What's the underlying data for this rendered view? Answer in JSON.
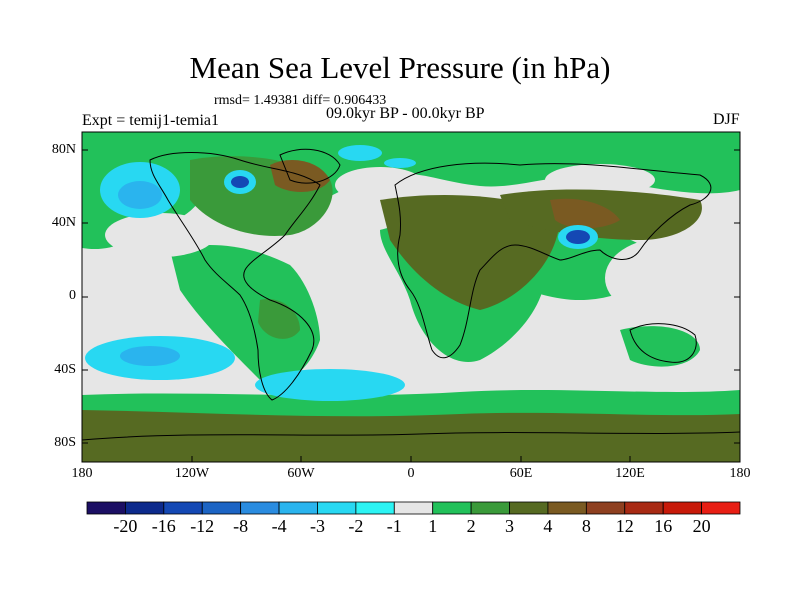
{
  "header": {
    "title": "Mean Sea Level Pressure (in hPa)",
    "stats": "rmsd= 1.49381 diff= 0.906433",
    "experiment": "Expt = temij1-temia1",
    "period": "09.0kyr BP - 00.0kyr BP",
    "season": "DJF"
  },
  "axes": {
    "y_labels": [
      "80N",
      "40N",
      "0",
      "40S",
      "80S"
    ],
    "x_labels": [
      "180",
      "120W",
      "60W",
      "0",
      "60E",
      "120E",
      "180"
    ]
  },
  "colorbar": {
    "labels": [
      "-20",
      "-16",
      "-12",
      "-8",
      "-4",
      "-3",
      "-2",
      "-1",
      "1",
      "2",
      "3",
      "4",
      "8",
      "12",
      "16",
      "20"
    ],
    "colors": [
      "#1c0f64",
      "#0d2a8c",
      "#1448b4",
      "#1c64c4",
      "#2a8ce0",
      "#2ab4ee",
      "#28d8f2",
      "#2cf4f4",
      "#e6e6e6",
      "#22c15a",
      "#3a9a3a",
      "#566a22",
      "#7a5a22",
      "#8e4020",
      "#a82a14",
      "#c81a0a",
      "#e81e14"
    ]
  },
  "colors": {
    "neutral": "#e6e6e6",
    "green": "#22c15a",
    "dark_green": "#3a9a3a",
    "olive": "#566a22",
    "brown": "#7a5a22",
    "light_cyan": "#2cf4f4",
    "cyan": "#28d8f2",
    "blue": "#2a8ce0",
    "deep_blue": "#1448b4"
  }
}
